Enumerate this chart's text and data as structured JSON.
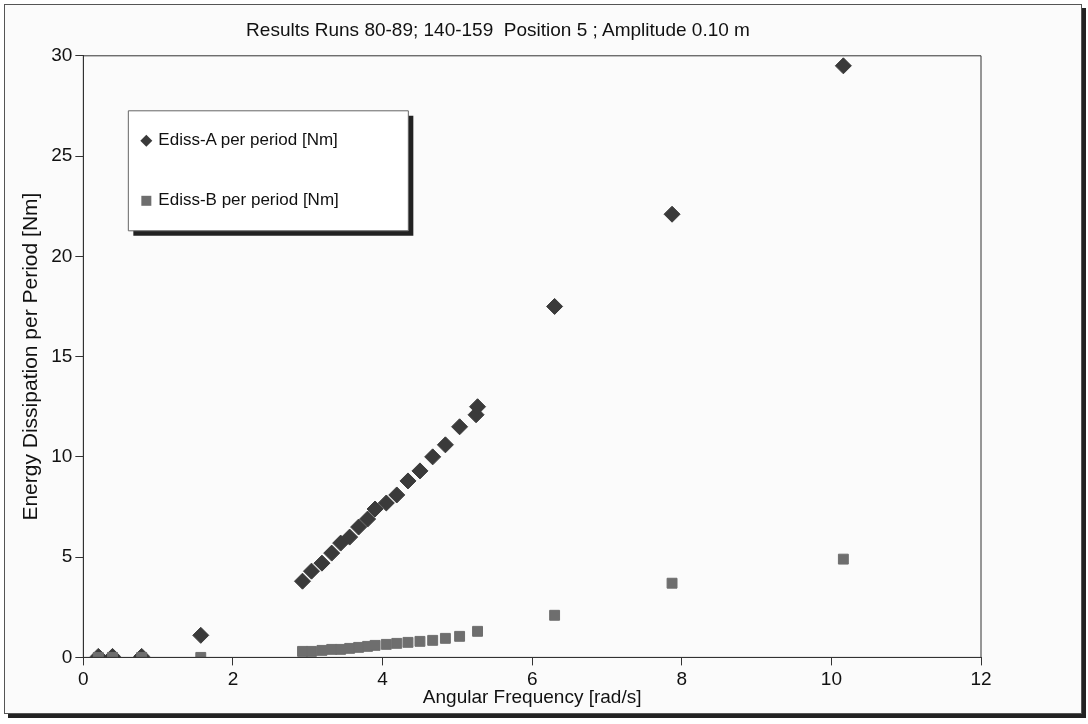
{
  "chart_data": {
    "type": "scatter",
    "title": "Results Runs 80-89; 140-159  Position 5 ; Amplitude 0.10 m",
    "xlabel": "Angular Frequency [rad/s]",
    "ylabel": "Energy Dissipation per Period [Nm]",
    "xlim": [
      0,
      12
    ],
    "xticks": [
      0,
      2,
      4,
      6,
      8,
      10,
      12
    ],
    "ylim": [
      0,
      30
    ],
    "yticks": [
      0,
      5,
      10,
      15,
      20,
      25,
      30
    ],
    "grid": false,
    "legend": "top left",
    "series": [
      {
        "name": "Ediss-A per period [Nm]",
        "color": "#3a3a3a",
        "marker": "diamond",
        "x": [
          0.2,
          0.39,
          0.78,
          1.57,
          2.93,
          3.05,
          3.19,
          3.32,
          3.44,
          3.56,
          3.68,
          3.8,
          3.9,
          4.05,
          4.19,
          4.34,
          4.5,
          4.67,
          4.84,
          5.03,
          5.25,
          5.27,
          6.3,
          7.87,
          10.16
        ],
        "values": [
          0.05,
          0.05,
          0.05,
          1.1,
          3.8,
          4.3,
          4.7,
          5.2,
          5.7,
          6.0,
          6.5,
          6.9,
          7.4,
          7.7,
          8.1,
          8.8,
          9.3,
          10.0,
          10.6,
          11.5,
          12.1,
          12.5,
          17.5,
          22.1,
          29.5
        ]
      },
      {
        "name": "Ediss-B per period [Nm]",
        "color": "#6e6e6e",
        "marker": "square",
        "x": [
          0.2,
          0.39,
          0.78,
          1.57,
          2.93,
          3.05,
          3.19,
          3.32,
          3.44,
          3.56,
          3.68,
          3.8,
          3.9,
          4.05,
          4.19,
          4.34,
          4.5,
          4.67,
          4.84,
          5.03,
          5.25,
          5.27,
          6.3,
          7.87,
          10.16
        ],
        "values": [
          0,
          0,
          0,
          0,
          0.3,
          0.3,
          0.35,
          0.4,
          0.4,
          0.45,
          0.5,
          0.55,
          0.6,
          0.65,
          0.7,
          0.75,
          0.8,
          0.85,
          0.95,
          1.05,
          null,
          1.3,
          2.1,
          3.7,
          4.9
        ]
      }
    ]
  }
}
